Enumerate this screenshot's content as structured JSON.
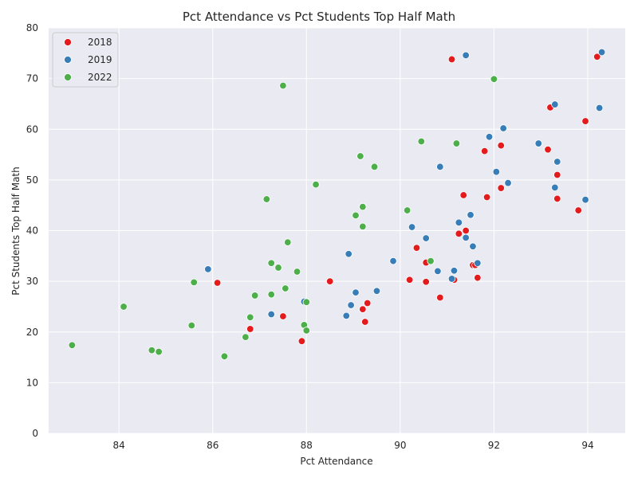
{
  "chart_data": {
    "type": "scatter",
    "title": "Pct Attendance vs Pct Students Top Half Math",
    "xlabel": "Pct Attendance",
    "ylabel": "Pct Students Top Half Math",
    "xlim": [
      82.5,
      94.8
    ],
    "ylim": [
      0,
      80
    ],
    "xticks": [
      84,
      86,
      88,
      90,
      92,
      94
    ],
    "yticks": [
      0,
      10,
      20,
      30,
      40,
      50,
      60,
      70,
      80
    ],
    "grid": true,
    "legend_position": "top-left",
    "series": [
      {
        "name": "2018",
        "color": "#e41a1c",
        "points": [
          [
            91.1,
            73.8
          ],
          [
            94.2,
            74.3
          ],
          [
            93.2,
            64.3
          ],
          [
            93.95,
            61.6
          ],
          [
            92.15,
            56.8
          ],
          [
            91.8,
            55.7
          ],
          [
            93.15,
            56.0
          ],
          [
            93.35,
            51.0
          ],
          [
            91.35,
            47.0
          ],
          [
            91.85,
            46.6
          ],
          [
            92.15,
            48.4
          ],
          [
            93.35,
            46.3
          ],
          [
            93.8,
            44.0
          ],
          [
            91.4,
            40.0
          ],
          [
            91.25,
            39.4
          ],
          [
            90.35,
            36.6
          ],
          [
            90.55,
            33.7
          ],
          [
            91.55,
            33.2
          ],
          [
            91.6,
            33.2
          ],
          [
            86.1,
            29.7
          ],
          [
            88.5,
            30.0
          ],
          [
            90.2,
            30.3
          ],
          [
            90.55,
            29.9
          ],
          [
            91.15,
            30.3
          ],
          [
            91.65,
            30.7
          ],
          [
            90.85,
            26.8
          ],
          [
            89.3,
            25.7
          ],
          [
            89.2,
            24.5
          ],
          [
            87.5,
            23.1
          ],
          [
            89.25,
            22.0
          ],
          [
            86.8,
            20.6
          ],
          [
            87.9,
            18.2
          ]
        ]
      },
      {
        "name": "2019",
        "color": "#377eb8",
        "points": [
          [
            91.4,
            74.6
          ],
          [
            94.3,
            75.2
          ],
          [
            93.3,
            64.9
          ],
          [
            94.25,
            64.2
          ],
          [
            92.2,
            60.2
          ],
          [
            91.9,
            58.5
          ],
          [
            92.95,
            57.2
          ],
          [
            93.35,
            53.6
          ],
          [
            90.85,
            52.6
          ],
          [
            92.05,
            51.6
          ],
          [
            92.3,
            49.4
          ],
          [
            93.3,
            48.5
          ],
          [
            93.95,
            46.1
          ],
          [
            91.5,
            43.1
          ],
          [
            91.25,
            41.6
          ],
          [
            90.25,
            40.7
          ],
          [
            90.55,
            38.5
          ],
          [
            91.4,
            38.6
          ],
          [
            91.55,
            36.9
          ],
          [
            88.9,
            35.4
          ],
          [
            89.85,
            34.0
          ],
          [
            91.65,
            33.6
          ],
          [
            85.9,
            32.4
          ],
          [
            90.8,
            32.0
          ],
          [
            91.15,
            32.1
          ],
          [
            91.1,
            30.5
          ],
          [
            89.05,
            27.8
          ],
          [
            89.5,
            28.1
          ],
          [
            87.95,
            26.0
          ],
          [
            88.95,
            25.3
          ],
          [
            87.25,
            23.5
          ],
          [
            88.85,
            23.2
          ]
        ]
      },
      {
        "name": "2022",
        "color": "#4daf4a",
        "points": [
          [
            87.5,
            68.6
          ],
          [
            92.0,
            69.9
          ],
          [
            90.45,
            57.6
          ],
          [
            91.2,
            57.2
          ],
          [
            89.15,
            54.7
          ],
          [
            89.45,
            52.6
          ],
          [
            88.2,
            49.1
          ],
          [
            87.15,
            46.2
          ],
          [
            89.2,
            44.7
          ],
          [
            90.15,
            44.0
          ],
          [
            89.05,
            43.0
          ],
          [
            89.2,
            40.8
          ],
          [
            87.6,
            37.7
          ],
          [
            90.65,
            34.0
          ],
          [
            87.25,
            33.6
          ],
          [
            87.4,
            32.7
          ],
          [
            87.8,
            31.9
          ],
          [
            85.6,
            29.8
          ],
          [
            87.55,
            28.6
          ],
          [
            86.9,
            27.2
          ],
          [
            87.25,
            27.4
          ],
          [
            88.0,
            25.9
          ],
          [
            84.1,
            25.0
          ],
          [
            86.8,
            22.9
          ],
          [
            85.55,
            21.3
          ],
          [
            87.95,
            21.4
          ],
          [
            88.0,
            20.3
          ],
          [
            86.7,
            19.0
          ],
          [
            83.0,
            17.4
          ],
          [
            84.7,
            16.4
          ],
          [
            84.85,
            16.1
          ],
          [
            86.25,
            15.2
          ]
        ]
      }
    ]
  }
}
